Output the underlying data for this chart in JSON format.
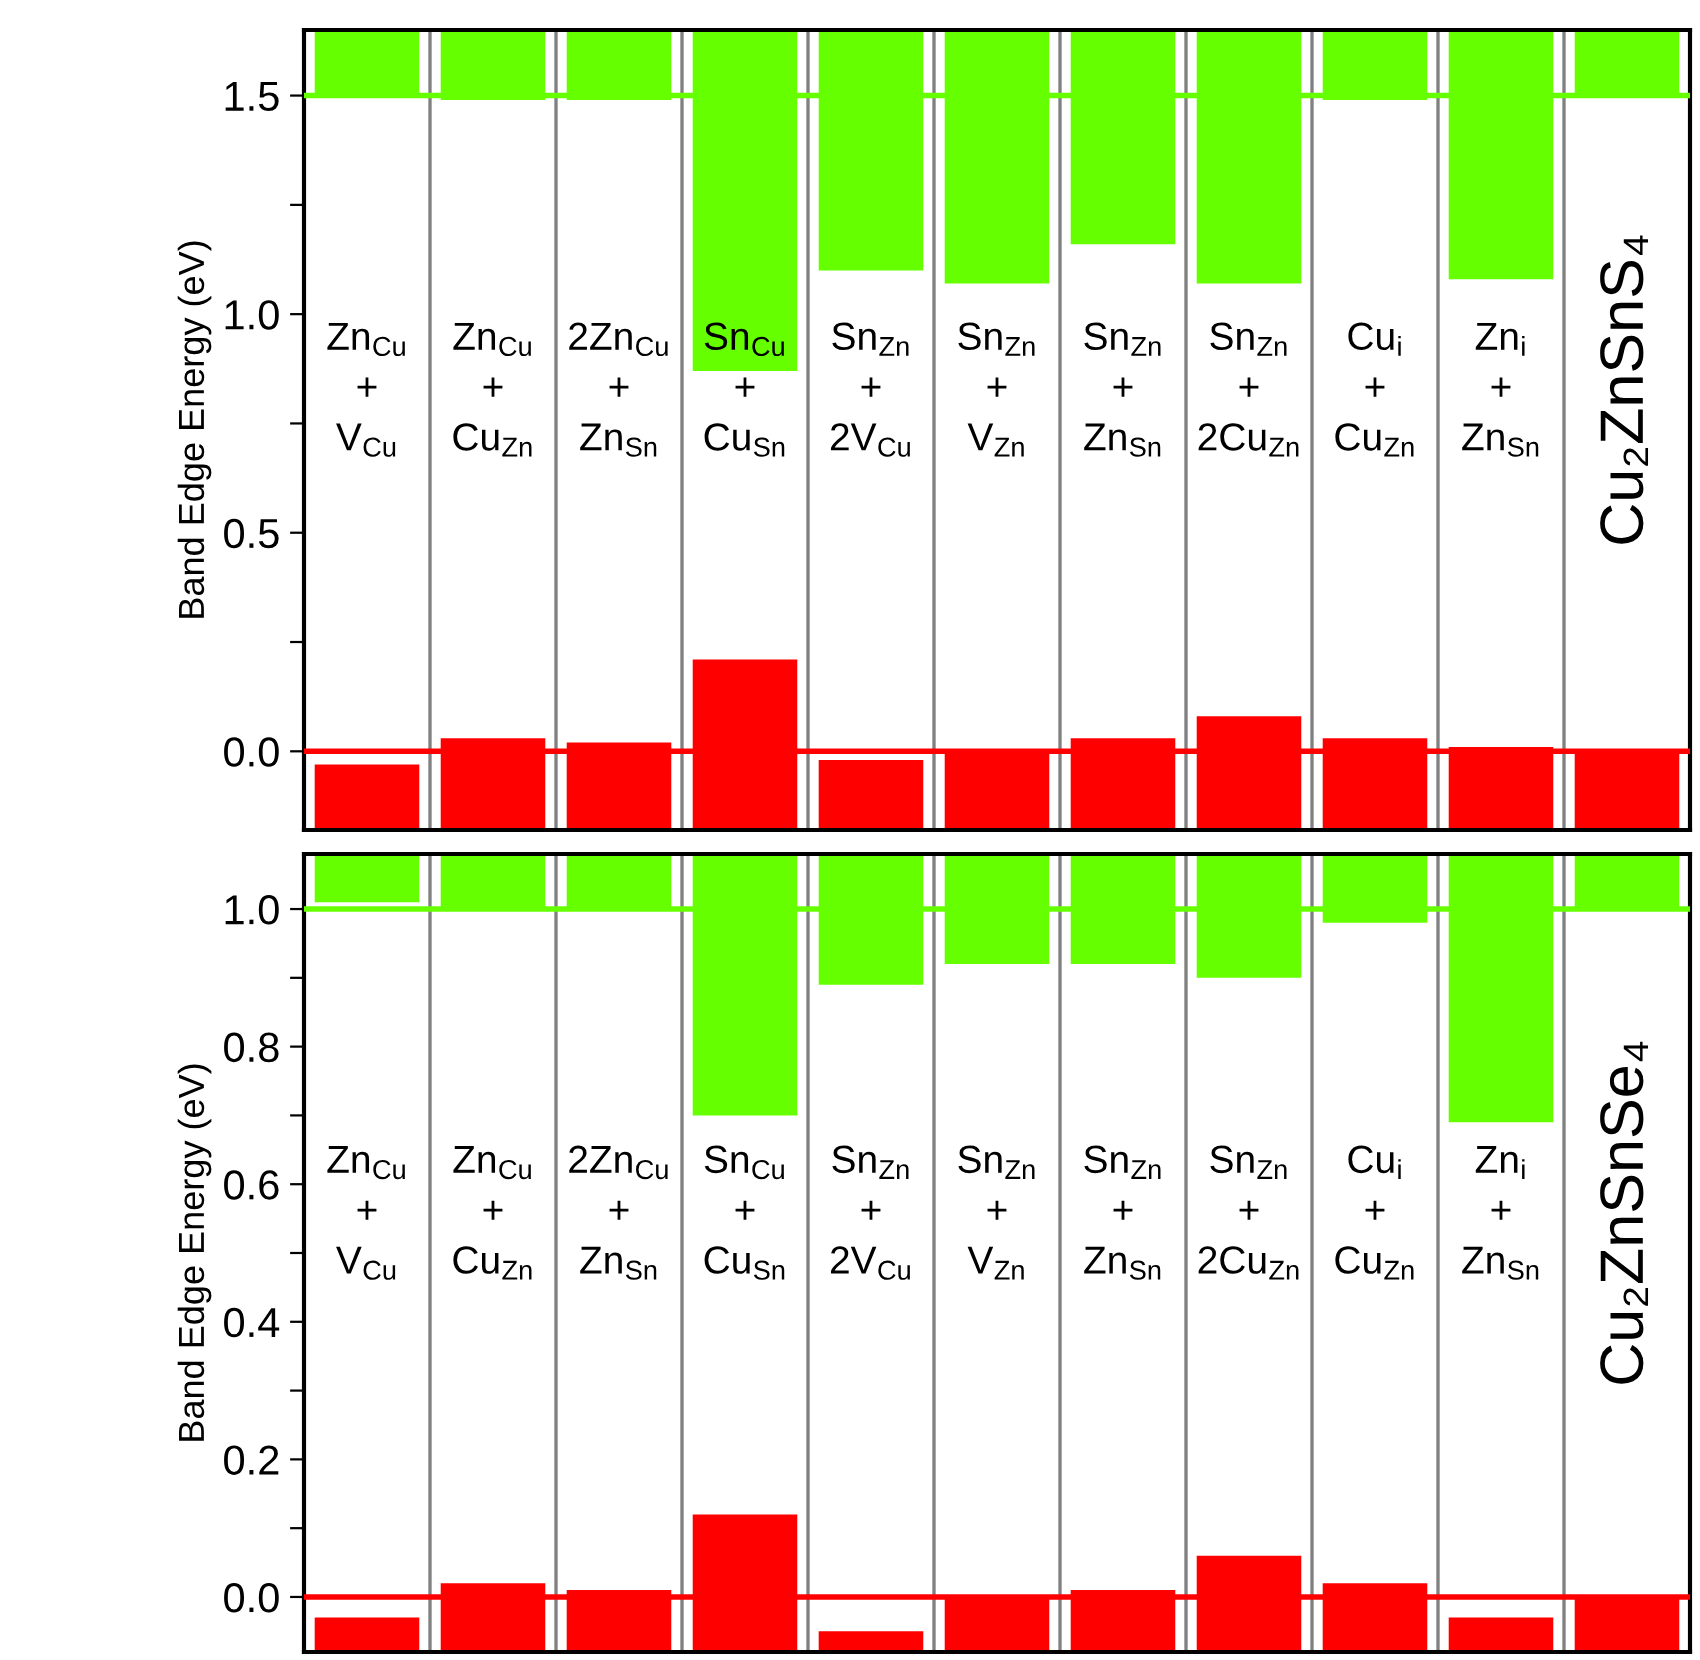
{
  "chart_data": [
    {
      "type": "bar",
      "ylabel": "Band Edge Energy (eV)",
      "tick_labels": "y",
      "grid": false,
      "legend": false,
      "categories": [
        "Zn$_{Cu}$\n+\nV$_{Cu}$",
        "Zn$_{Cu}$\n+\nCu$_{Zn}$",
        "2Zn$_{Cu}$\n+\nZn$_{Sn}$",
        "Sn$_{Cu}$\n+\nCu$_{Sn}$",
        "Sn$_{Zn}$\n+\n2V$_{Cu}$",
        "Sn$_{Zn}$\n+\nV$_{Zn}$",
        "Sn$_{Zn}$\n+\nZn$_{Sn}$",
        "Sn$_{Zn}$\n+\n2Cu$_{Zn}$",
        "Cu$_{i}$\n+\nCu$_{Zn}$",
        "Zn$_{i}$\n+\nZn$_{Sn}$",
        "Cu₂ZnSnS₄"
      ],
      "ylim": [
        -0.18,
        1.65
      ],
      "yticks": [
        {
          "value": 0,
          "label": "0.0"
        },
        {
          "value": 0.25,
          "label": null
        },
        {
          "value": 0.5,
          "label": "0.5"
        },
        {
          "value": 0.75,
          "label": null
        },
        {
          "value": 1.0,
          "label": "1.0"
        },
        {
          "value": 1.25,
          "label": null
        },
        {
          "value": 1.5,
          "label": "1.5"
        }
      ],
      "series": [
        {
          "color": "#66ff00",
          "base": [
            1.5,
            1.49,
            1.49,
            0.87,
            1.1,
            1.07,
            1.16,
            1.07,
            1.49,
            1.08,
            1.5
          ],
          "values": [
            0.15,
            0.16,
            0.16,
            0.78,
            0.55,
            0.58,
            0.49,
            0.58,
            0.16,
            0.57,
            0.15
          ]
        },
        {
          "color": "#ff0000",
          "base": [
            -0.18,
            -0.18,
            -0.18,
            -0.18,
            -0.18,
            -0.18,
            -0.18,
            -0.18,
            -0.18,
            -0.18,
            -0.18
          ],
          "values": [
            0.15,
            0.21,
            0.2,
            0.39,
            0.16,
            0.18,
            0.21,
            0.26,
            0.21,
            0.19,
            0.18
          ]
        }
      ],
      "ref_lines": [
        {
          "axis": "y",
          "value": 1.5,
          "color": "#66ff00"
        },
        {
          "axis": "y",
          "value": 0,
          "color": "#ff0000"
        }
      ]
    },
    {
      "type": "bar",
      "ylabel": "Band Edge Energy (eV)",
      "tick_labels": "y",
      "grid": false,
      "legend": false,
      "categories": [
        "Zn$_{Cu}$\n+\nV$_{Cu}$",
        "Zn$_{Cu}$\n+\nCu$_{Zn}$",
        "2Zn$_{Cu}$\n+\nZn$_{Sn}$",
        "Sn$_{Cu}$\n+\nCu$_{Sn}$",
        "Sn$_{Zn}$\n+\n2V$_{Cu}$",
        "Sn$_{Zn}$\n+\nV$_{Zn}$",
        "Sn$_{Zn}$\n+\nZn$_{Sn}$",
        "Sn$_{Zn}$\n+\n2Cu$_{Zn}$",
        "Cu$_{i}$\n+\nCu$_{Zn}$",
        "Zn$_{i}$\n+\nZn$_{Sn}$",
        "Cu₂ZnSnSe₄"
      ],
      "ylim": [
        -0.08,
        1.08
      ],
      "yticks": [
        {
          "value": 0,
          "label": "0.0"
        },
        {
          "value": 0.1,
          "label": null
        },
        {
          "value": 0.2,
          "label": "0.2"
        },
        {
          "value": 0.3,
          "label": null
        },
        {
          "value": 0.4,
          "label": "0.4"
        },
        {
          "value": 0.5,
          "label": null
        },
        {
          "value": 0.6,
          "label": "0.6"
        },
        {
          "value": 0.7,
          "label": null
        },
        {
          "value": 0.8,
          "label": "0.8"
        },
        {
          "value": 0.9,
          "label": null
        },
        {
          "value": 1.0,
          "label": "1.0"
        }
      ],
      "series": [
        {
          "color": "#66ff00",
          "base": [
            1.01,
            1.0,
            1.0,
            0.7,
            0.89,
            0.92,
            0.92,
            0.9,
            0.98,
            0.69,
            1.0
          ],
          "values": [
            0.07,
            0.08,
            0.08,
            0.38,
            0.19,
            0.16,
            0.16,
            0.18,
            0.1,
            0.39,
            0.08
          ]
        },
        {
          "color": "#ff0000",
          "base": [
            -0.08,
            -0.08,
            -0.08,
            -0.08,
            -0.08,
            -0.08,
            -0.08,
            -0.08,
            -0.08,
            -0.08,
            -0.08
          ],
          "values": [
            0.05,
            0.1,
            0.09,
            0.2,
            0.03,
            0.08,
            0.09,
            0.14,
            0.1,
            0.05,
            0.08
          ]
        }
      ],
      "ref_lines": [
        {
          "axis": "y",
          "value": 1.0,
          "color": "#66ff00"
        },
        {
          "axis": "y",
          "value": 0,
          "color": "#ff0000"
        }
      ]
    }
  ]
}
